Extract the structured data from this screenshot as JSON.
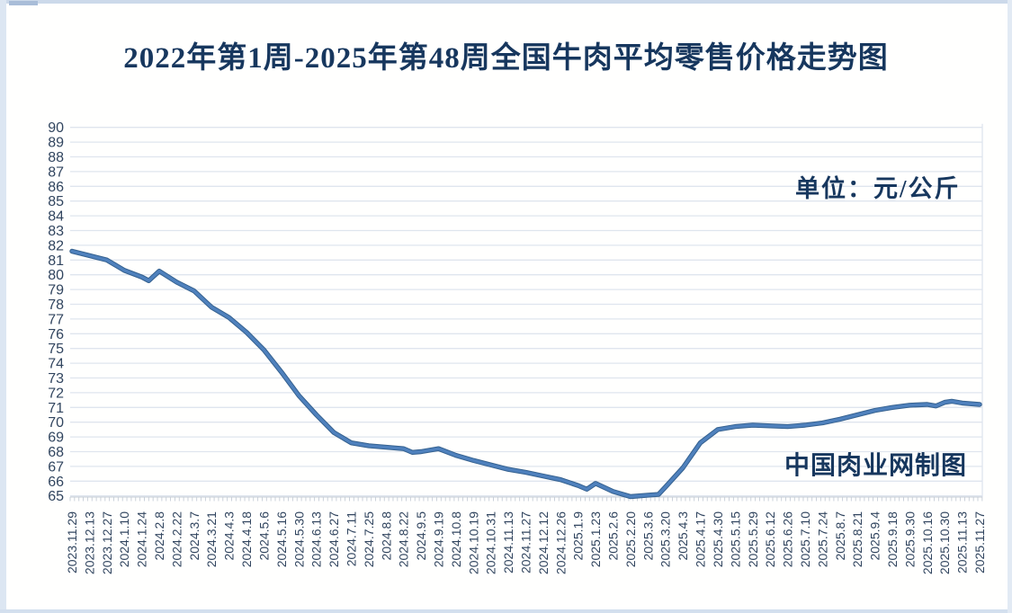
{
  "title": {
    "text": "2022年第1周-2025年第48周全国牛肉平均零售价格走势图",
    "color": "#17375e"
  },
  "unit_label": {
    "text": "单位：元/公斤"
  },
  "watermark": {
    "text": "中国肉业网制图"
  },
  "chart_data": {
    "type": "line",
    "title": "2022年第1周-2025年第48周全国牛肉平均零售价格走势图",
    "xlabel": "",
    "ylabel": "",
    "unit": "元/公斤",
    "ylim": [
      65,
      90
    ],
    "ytick_step": 1,
    "grid": true,
    "legend": false,
    "categories": [
      "2023.11.29",
      "2023.12.13",
      "2023.12.27",
      "2024.1.10",
      "2024.1.24",
      "2024.2.8",
      "2024.2.22",
      "2024.3.7",
      "2024.3.21",
      "2024.4.3",
      "2024.4.18",
      "2024.5.6",
      "2024.5.16",
      "2024.5.30",
      "2024.6.13",
      "2024.6.27",
      "2024.7.11",
      "2024.7.25",
      "2024.8.8",
      "2024.8.22",
      "2024.9.5",
      "2024.9.19",
      "2024.10.8",
      "2024.10.19",
      "2024.10.31",
      "2024.11.13",
      "2024.11.27",
      "2024.12.12",
      "2024.12.26",
      "2025.1.9",
      "2025.1.23",
      "2025.2.6",
      "2025.2.20",
      "2025.3.6",
      "2025.3.20",
      "2025.4.3",
      "2025.4.17",
      "2025.4.30",
      "2025.5.15",
      "2025.5.29",
      "2025.6.12",
      "2025.6.26",
      "2025.7.10",
      "2025.7.24",
      "2025.8.7",
      "2025.8.21",
      "2025.9.4",
      "2025.9.18",
      "2025.9.30",
      "2025.10.16",
      "2025.10.30",
      "2025.11.13",
      "2025.11.27"
    ],
    "series": [
      {
        "name": "全国牛肉平均零售价格",
        "values": [
          81.6,
          81.3,
          81.0,
          80.3,
          79.85,
          80.25,
          79.5,
          78.9,
          77.8,
          77.1,
          76.1,
          74.9,
          73.4,
          71.8,
          70.5,
          69.3,
          68.6,
          68.4,
          68.3,
          68.2,
          68.0,
          68.2,
          67.75,
          67.4,
          67.1,
          66.8,
          66.6,
          66.35,
          66.1,
          65.7,
          65.85,
          65.3,
          64.95,
          65.05,
          65.6,
          66.9,
          68.6,
          69.5,
          69.7,
          69.8,
          69.75,
          69.7,
          69.8,
          69.95,
          70.2,
          70.5,
          70.8,
          71.0,
          71.15,
          71.2,
          71.35,
          71.3,
          71.2
        ]
      }
    ],
    "inter_points": [
      {
        "index": 4.4,
        "value": 79.6
      },
      {
        "index": 19.5,
        "value": 67.95
      },
      {
        "index": 29.5,
        "value": 65.45
      },
      {
        "index": 33.6,
        "value": 65.1
      },
      {
        "index": 49.5,
        "value": 71.1
      },
      {
        "index": 50.4,
        "value": 71.42
      }
    ],
    "colors": {
      "line": "#4f81bd",
      "line_shadow": "#35618f",
      "grid": "#dfe5ee",
      "tick": "#c5ccd6",
      "axis_text": "#31455f",
      "heading": "#17375e"
    }
  }
}
